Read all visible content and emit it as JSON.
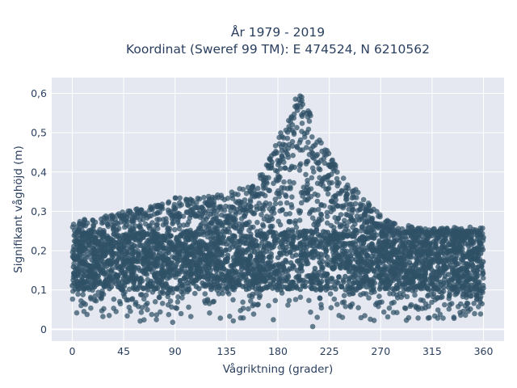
{
  "chart_data": {
    "type": "scatter",
    "title": "År 1979 - 2019",
    "subtitle": "Koordinat (Sweref 99 TM): E 474524, N 6210562",
    "xlabel": "Vågriktning (grader)",
    "ylabel": "Signifikant våghöjd (m)",
    "xlim": [
      -18,
      378
    ],
    "ylim": [
      -0.03,
      0.64
    ],
    "xticks": [
      0,
      45,
      90,
      135,
      180,
      225,
      270,
      315,
      360
    ],
    "xtick_labels": [
      "0",
      "45",
      "90",
      "135",
      "180",
      "225",
      "270",
      "315",
      "360"
    ],
    "yticks": [
      0,
      0.1,
      0.2,
      0.3,
      0.4,
      0.5,
      0.6
    ],
    "ytick_labels": [
      "0",
      "0,1",
      "0,2",
      "0,3",
      "0,4",
      "0,5",
      "0,6"
    ],
    "grid": true,
    "background": "#e5e8f0",
    "marker_color": "#2f5167",
    "envelope": {
      "direction": [
        0,
        10,
        20,
        30,
        45,
        60,
        75,
        90,
        105,
        120,
        135,
        150,
        160,
        170,
        180,
        190,
        200,
        210,
        220,
        230,
        240,
        250,
        260,
        270,
        285,
        300,
        315,
        330,
        345,
        360
      ],
      "max_height": [
        0.27,
        0.28,
        0.28,
        0.29,
        0.3,
        0.31,
        0.32,
        0.34,
        0.33,
        0.34,
        0.35,
        0.36,
        0.38,
        0.42,
        0.48,
        0.56,
        0.61,
        0.55,
        0.47,
        0.42,
        0.38,
        0.35,
        0.32,
        0.29,
        0.27,
        0.26,
        0.26,
        0.26,
        0.26,
        0.26
      ],
      "min_height": [
        0.01,
        0.01,
        0.01,
        0.01,
        0.01,
        0.01,
        0.01,
        0.01,
        0.01,
        0.01,
        0.01,
        0.01,
        0.01,
        0.01,
        0.0,
        0.0,
        0.0,
        0.0,
        0.0,
        0.01,
        0.01,
        0.01,
        0.01,
        0.01,
        0.01,
        0.01,
        0.01,
        0.01,
        0.01,
        0.01
      ]
    }
  }
}
